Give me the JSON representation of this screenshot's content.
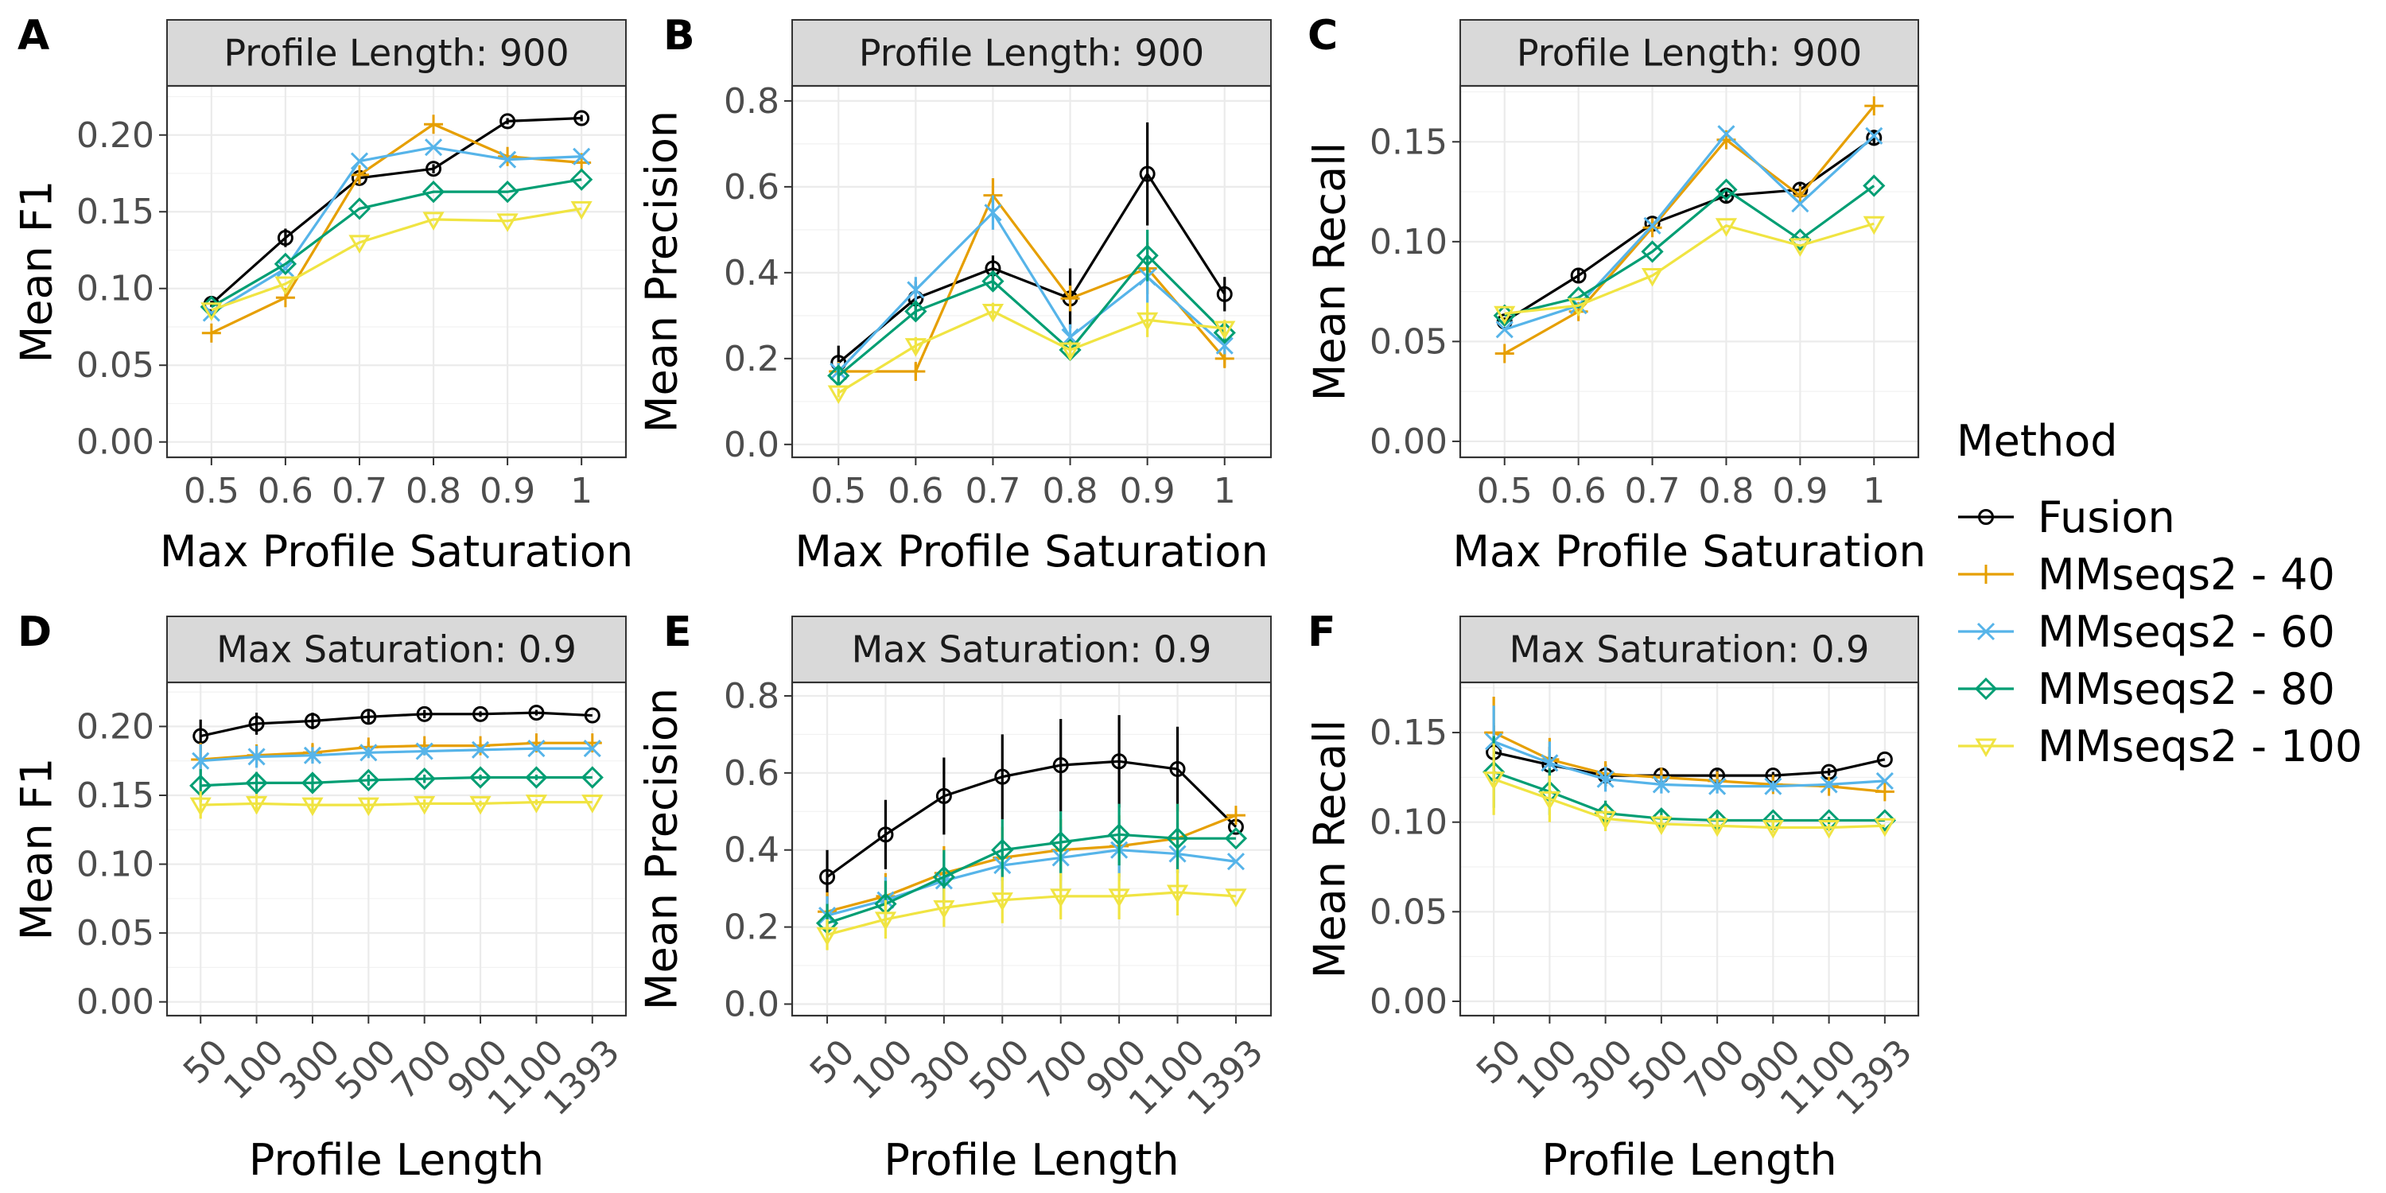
{
  "colors": {
    "Fusion": "#000000",
    "MMseqs2 - 40": "#E69F00",
    "MMseqs2 - 60": "#56B4E9",
    "MMseqs2 - 80": "#009E73",
    "MMseqs2 - 100": "#F0E442"
  },
  "legend": {
    "title": "Method",
    "items": [
      {
        "label": "Fusion",
        "marker": "circle"
      },
      {
        "label": "MMseqs2 - 40",
        "marker": "plus"
      },
      {
        "label": "MMseqs2 - 60",
        "marker": "cross"
      },
      {
        "label": "MMseqs2 - 80",
        "marker": "diamond"
      },
      {
        "label": "MMseqs2 - 100",
        "marker": "triangle-down"
      }
    ]
  },
  "chart_data": [
    {
      "panel": "A",
      "type": "line",
      "strip": "Profile Length: 900",
      "xlabel": "Max Profile Saturation",
      "ylabel": "Mean F1",
      "categories": [
        "0.5",
        "0.6",
        "0.7",
        "0.8",
        "0.9",
        "1"
      ],
      "ylim": [
        -0.01,
        0.232
      ],
      "yticks": [
        "0.00",
        "0.05",
        "0.10",
        "0.15",
        "0.20"
      ],
      "series": [
        {
          "name": "Fusion",
          "values": [
            0.09,
            0.133,
            0.172,
            0.178,
            0.209,
            0.211
          ],
          "err": [
            0.002,
            0.006,
            0.004,
            0.003,
            0.002,
            0.002
          ]
        },
        {
          "name": "MMseqs2 - 40",
          "values": [
            0.071,
            0.094,
            0.174,
            0.207,
            0.186,
            0.182
          ],
          "err": [
            0,
            0,
            0,
            0,
            0,
            0
          ]
        },
        {
          "name": "MMseqs2 - 60",
          "values": [
            0.084,
            0.113,
            0.183,
            0.192,
            0.184,
            0.186
          ],
          "err": [
            0,
            0,
            0,
            0,
            0,
            0
          ]
        },
        {
          "name": "MMseqs2 - 80",
          "values": [
            0.088,
            0.116,
            0.152,
            0.163,
            0.163,
            0.171
          ],
          "err": [
            0,
            0,
            0,
            0,
            0,
            0
          ]
        },
        {
          "name": "MMseqs2 - 100",
          "values": [
            0.086,
            0.103,
            0.13,
            0.145,
            0.144,
            0.152
          ],
          "err": [
            0,
            0,
            0,
            0,
            0,
            0
          ]
        }
      ]
    },
    {
      "panel": "B",
      "type": "line",
      "strip": "Profile Length: 900",
      "xlabel": "Max Profile Saturation",
      "ylabel": "Mean Precision",
      "categories": [
        "0.5",
        "0.6",
        "0.7",
        "0.8",
        "0.9",
        "1"
      ],
      "ylim": [
        -0.03,
        0.835
      ],
      "yticks": [
        "0.0",
        "0.2",
        "0.4",
        "0.6",
        "0.8"
      ],
      "series": [
        {
          "name": "Fusion",
          "values": [
            0.19,
            0.34,
            0.41,
            0.34,
            0.63,
            0.35
          ],
          "err": [
            0.04,
            0.04,
            0.03,
            0.07,
            0.12,
            0.04
          ]
        },
        {
          "name": "MMseqs2 - 40",
          "values": [
            0.17,
            0.17,
            0.58,
            0.34,
            0.41,
            0.2
          ],
          "err": [
            0.02,
            0.02,
            0.04,
            0.03,
            0.06,
            0.02
          ]
        },
        {
          "name": "MMseqs2 - 60",
          "values": [
            0.17,
            0.36,
            0.54,
            0.25,
            0.39,
            0.23
          ],
          "err": [
            0.02,
            0.03,
            0.04,
            0.03,
            0.06,
            0.02
          ]
        },
        {
          "name": "MMseqs2 - 80",
          "values": [
            0.16,
            0.31,
            0.38,
            0.22,
            0.44,
            0.26
          ],
          "err": [
            0.02,
            0.02,
            0.02,
            0.02,
            0.06,
            0.02
          ]
        },
        {
          "name": "MMseqs2 - 100",
          "values": [
            0.12,
            0.23,
            0.31,
            0.22,
            0.29,
            0.27
          ],
          "err": [
            0.01,
            0.02,
            0.02,
            0.02,
            0.04,
            0.02
          ]
        }
      ]
    },
    {
      "panel": "C",
      "type": "line",
      "strip": "Profile Length: 900",
      "xlabel": "Max Profile Saturation",
      "ylabel": "Mean Recall",
      "categories": [
        "0.5",
        "0.6",
        "0.7",
        "0.8",
        "0.9",
        "1"
      ],
      "ylim": [
        -0.008,
        0.178
      ],
      "yticks": [
        "0.00",
        "0.05",
        "0.10",
        "0.15"
      ],
      "series": [
        {
          "name": "Fusion",
          "values": [
            0.06,
            0.083,
            0.109,
            0.123,
            0.126,
            0.152
          ],
          "err": [
            0.002,
            0.003,
            0.003,
            0.004,
            0.004,
            0.004
          ]
        },
        {
          "name": "MMseqs2 - 40",
          "values": [
            0.044,
            0.065,
            0.107,
            0.151,
            0.123,
            0.168
          ],
          "err": [
            0,
            0,
            0,
            0,
            0,
            0
          ]
        },
        {
          "name": "MMseqs2 - 60",
          "values": [
            0.056,
            0.068,
            0.108,
            0.154,
            0.119,
            0.153
          ],
          "err": [
            0,
            0,
            0,
            0,
            0,
            0
          ]
        },
        {
          "name": "MMseqs2 - 80",
          "values": [
            0.063,
            0.072,
            0.095,
            0.126,
            0.101,
            0.128
          ],
          "err": [
            0,
            0,
            0,
            0,
            0,
            0
          ]
        },
        {
          "name": "MMseqs2 - 100",
          "values": [
            0.064,
            0.068,
            0.083,
            0.108,
            0.098,
            0.109
          ],
          "err": [
            0,
            0,
            0,
            0,
            0,
            0
          ]
        }
      ]
    },
    {
      "panel": "D",
      "type": "line",
      "strip": "Max Saturation: 0.9",
      "xlabel": "Profile Length",
      "ylabel": "Mean F1",
      "categories": [
        "50",
        "100",
        "300",
        "500",
        "700",
        "900",
        "1100",
        "1393"
      ],
      "ylim": [
        -0.01,
        0.232
      ],
      "yticks": [
        "0.00",
        "0.05",
        "0.10",
        "0.15",
        "0.20"
      ],
      "series": [
        {
          "name": "Fusion",
          "values": [
            0.193,
            0.202,
            0.204,
            0.207,
            0.209,
            0.209,
            0.21,
            0.208
          ],
          "err": [
            0.012,
            0.008,
            0.006,
            0.004,
            0.003,
            0.002,
            0.002,
            0
          ]
        },
        {
          "name": "MMseqs2 - 40",
          "values": [
            0.176,
            0.179,
            0.181,
            0.185,
            0.186,
            0.186,
            0.188,
            0.188
          ],
          "err": [
            0.012,
            0.008,
            0.006,
            0.004,
            0.003,
            0.002,
            0.002,
            0
          ]
        },
        {
          "name": "MMseqs2 - 60",
          "values": [
            0.175,
            0.178,
            0.179,
            0.181,
            0.182,
            0.183,
            0.184,
            0.184
          ],
          "err": [
            0.012,
            0.008,
            0.006,
            0.004,
            0.003,
            0.002,
            0.002,
            0
          ]
        },
        {
          "name": "MMseqs2 - 80",
          "values": [
            0.157,
            0.159,
            0.159,
            0.161,
            0.162,
            0.163,
            0.163,
            0.163
          ],
          "err": [
            0.012,
            0.008,
            0.006,
            0.004,
            0.003,
            0.002,
            0.002,
            0
          ]
        },
        {
          "name": "MMseqs2 - 100",
          "values": [
            0.143,
            0.144,
            0.143,
            0.143,
            0.144,
            0.144,
            0.145,
            0.145
          ],
          "err": [
            0.01,
            0.007,
            0.005,
            0.004,
            0.003,
            0.002,
            0.002,
            0
          ]
        }
      ]
    },
    {
      "panel": "E",
      "type": "line",
      "strip": "Max Saturation: 0.9",
      "xlabel": "Profile Length",
      "ylabel": "Mean Precision",
      "categories": [
        "50",
        "100",
        "300",
        "500",
        "700",
        "900",
        "1100",
        "1393"
      ],
      "ylim": [
        -0.03,
        0.835
      ],
      "yticks": [
        "0.0",
        "0.2",
        "0.4",
        "0.6",
        "0.8"
      ],
      "series": [
        {
          "name": "Fusion",
          "values": [
            0.33,
            0.44,
            0.54,
            0.59,
            0.62,
            0.63,
            0.61,
            0.46
          ],
          "err": [
            0.07,
            0.09,
            0.1,
            0.11,
            0.12,
            0.12,
            0.11,
            0
          ]
        },
        {
          "name": "MMseqs2 - 40",
          "values": [
            0.24,
            0.28,
            0.34,
            0.38,
            0.4,
            0.41,
            0.43,
            0.49
          ],
          "err": [
            0.05,
            0.06,
            0.07,
            0.08,
            0.08,
            0.08,
            0.09,
            0
          ]
        },
        {
          "name": "MMseqs2 - 60",
          "values": [
            0.23,
            0.27,
            0.32,
            0.36,
            0.38,
            0.4,
            0.39,
            0.37
          ],
          "err": [
            0.05,
            0.06,
            0.07,
            0.07,
            0.08,
            0.08,
            0.08,
            0
          ]
        },
        {
          "name": "MMseqs2 - 80",
          "values": [
            0.21,
            0.26,
            0.33,
            0.4,
            0.42,
            0.44,
            0.43,
            0.43
          ],
          "err": [
            0.05,
            0.06,
            0.07,
            0.08,
            0.08,
            0.08,
            0.09,
            0
          ]
        },
        {
          "name": "MMseqs2 - 100",
          "values": [
            0.18,
            0.22,
            0.25,
            0.27,
            0.28,
            0.28,
            0.29,
            0.28
          ],
          "err": [
            0.04,
            0.05,
            0.05,
            0.06,
            0.06,
            0.06,
            0.06,
            0
          ]
        }
      ]
    },
    {
      "panel": "F",
      "type": "line",
      "strip": "Max Saturation: 0.9",
      "xlabel": "Profile Length",
      "ylabel": "Mean Recall",
      "categories": [
        "50",
        "100",
        "300",
        "500",
        "700",
        "900",
        "1100",
        "1393"
      ],
      "ylim": [
        -0.008,
        0.178
      ],
      "yticks": [
        "0.00",
        "0.05",
        "0.10",
        "0.15"
      ],
      "series": [
        {
          "name": "Fusion",
          "values": [
            0.139,
            0.132,
            0.126,
            0.126,
            0.126,
            0.126,
            0.128,
            0.135
          ],
          "err": [
            0.015,
            0.01,
            0.006,
            0.004,
            0.003,
            0.002,
            0.002,
            0
          ]
        },
        {
          "name": "MMseqs2 - 40",
          "values": [
            0.15,
            0.135,
            0.127,
            0.125,
            0.123,
            0.121,
            0.12,
            0.117
          ],
          "err": [
            0.02,
            0.012,
            0.007,
            0.005,
            0.004,
            0.003,
            0.002,
            0
          ]
        },
        {
          "name": "MMseqs2 - 60",
          "values": [
            0.145,
            0.133,
            0.124,
            0.121,
            0.12,
            0.12,
            0.121,
            0.123
          ],
          "err": [
            0.02,
            0.012,
            0.007,
            0.005,
            0.004,
            0.003,
            0.002,
            0
          ]
        },
        {
          "name": "MMseqs2 - 80",
          "values": [
            0.128,
            0.117,
            0.105,
            0.102,
            0.101,
            0.101,
            0.101,
            0.101
          ],
          "err": [
            0.02,
            0.013,
            0.007,
            0.005,
            0.004,
            0.003,
            0.002,
            0
          ]
        },
        {
          "name": "MMseqs2 - 100",
          "values": [
            0.124,
            0.113,
            0.102,
            0.099,
            0.098,
            0.097,
            0.097,
            0.098
          ],
          "err": [
            0.02,
            0.013,
            0.007,
            0.005,
            0.004,
            0.003,
            0.002,
            0
          ]
        }
      ]
    }
  ]
}
